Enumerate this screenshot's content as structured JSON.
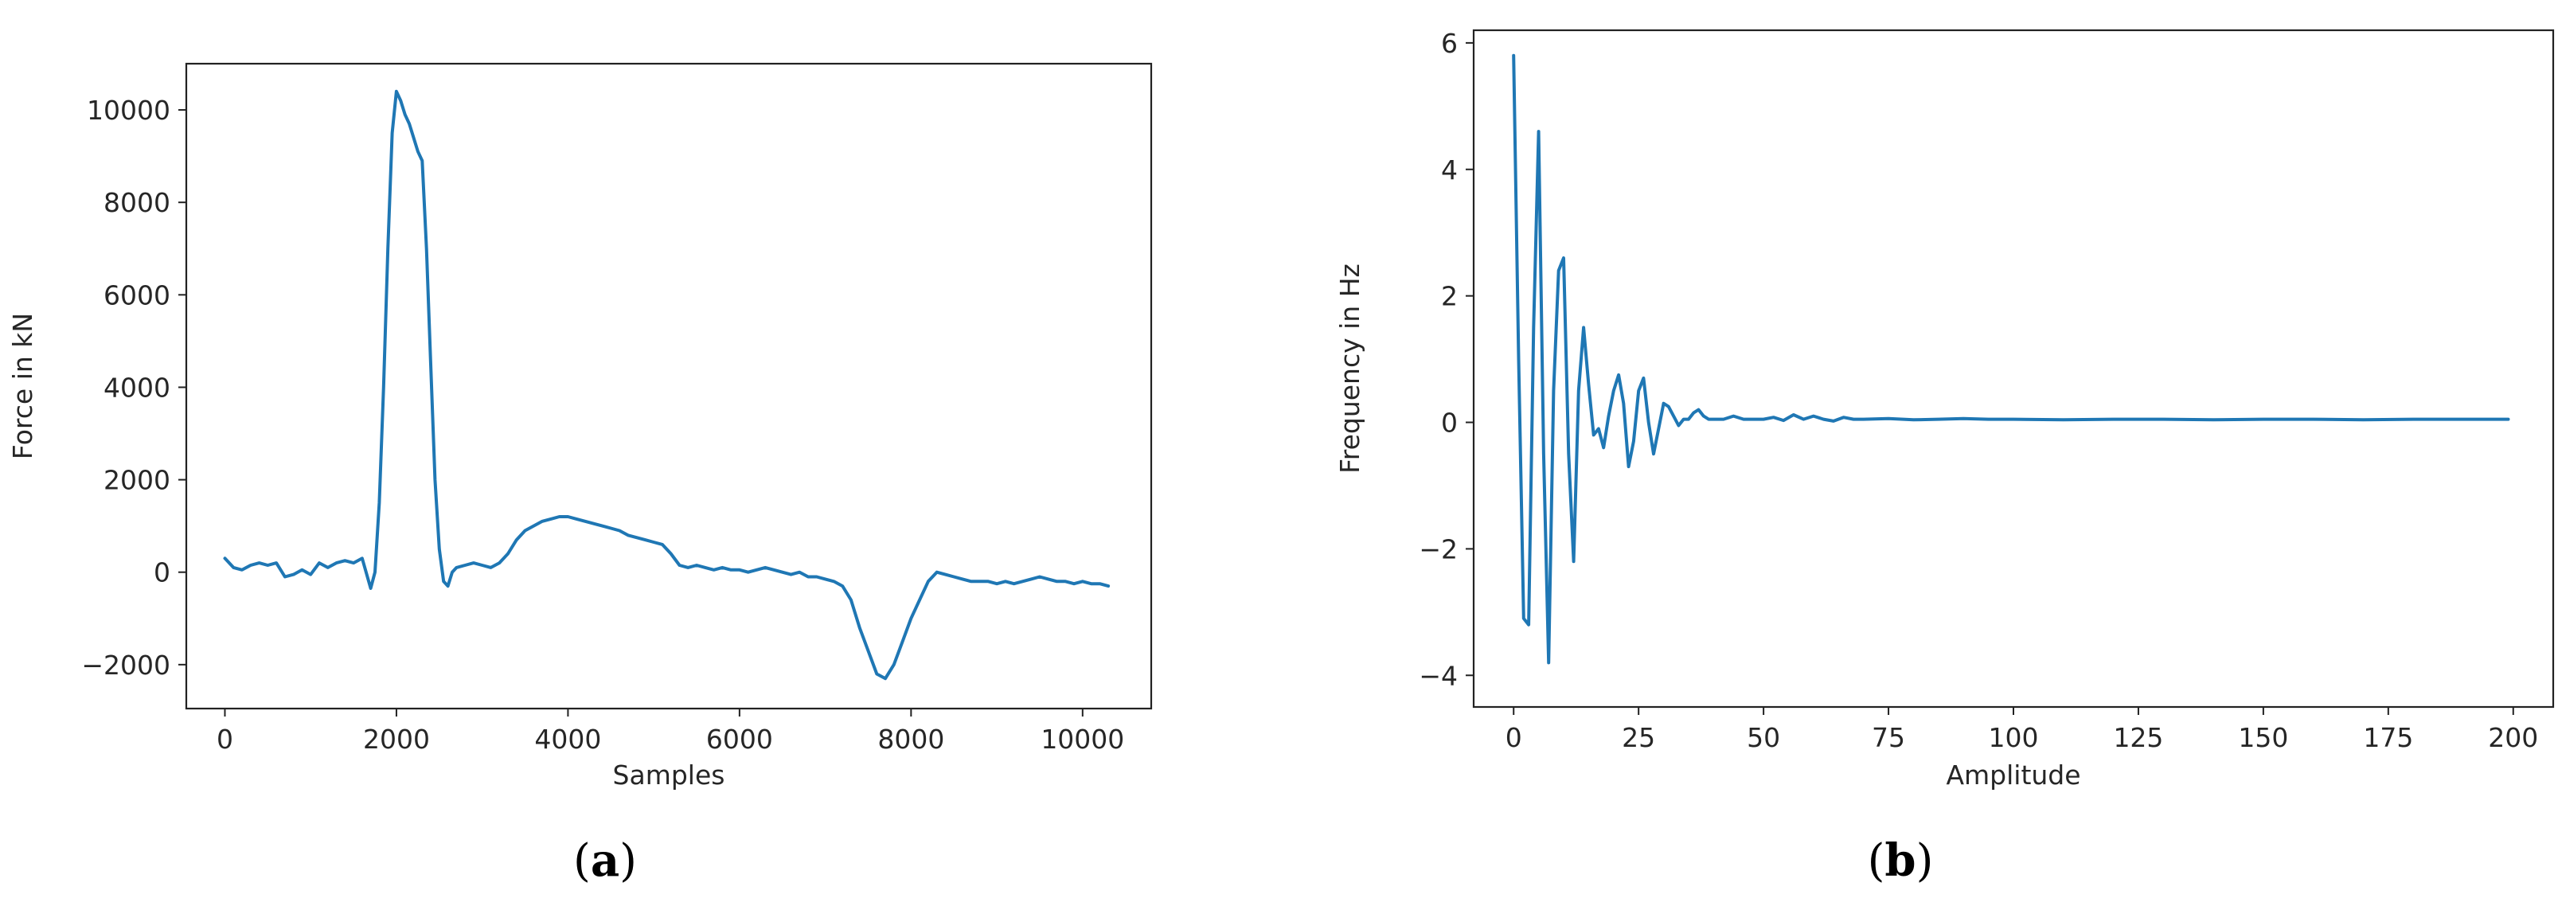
{
  "chart_data": [
    {
      "type": "line",
      "caption_letter": "a",
      "xlabel": "Samples",
      "ylabel": "Force in kN",
      "xlim": [
        -450,
        10800
      ],
      "ylim": [
        -2950,
        11000
      ],
      "xticks": [
        0,
        2000,
        4000,
        6000,
        8000,
        10000
      ],
      "yticks": [
        -2000,
        0,
        2000,
        4000,
        6000,
        8000,
        10000
      ],
      "line_color": "#1f77b4",
      "grid": false,
      "series": [
        {
          "x": [
            0,
            100,
            200,
            300,
            400,
            500,
            600,
            700,
            800,
            900,
            1000,
            1100,
            1200,
            1300,
            1400,
            1500,
            1600,
            1700,
            1750,
            1800,
            1850,
            1900,
            1950,
            2000,
            2050,
            2100,
            2150,
            2200,
            2250,
            2300,
            2350,
            2400,
            2450,
            2500,
            2550,
            2600,
            2650,
            2700,
            2800,
            2900,
            3000,
            3100,
            3200,
            3300,
            3400,
            3500,
            3600,
            3700,
            3800,
            3900,
            4000,
            4100,
            4200,
            4300,
            4400,
            4500,
            4600,
            4700,
            4800,
            4900,
            5000,
            5100,
            5200,
            5300,
            5400,
            5500,
            5600,
            5700,
            5800,
            5900,
            6000,
            6100,
            6200,
            6300,
            6400,
            6500,
            6600,
            6700,
            6800,
            6900,
            7000,
            7100,
            7200,
            7300,
            7400,
            7500,
            7600,
            7700,
            7800,
            7900,
            8000,
            8100,
            8200,
            8300,
            8400,
            8500,
            8600,
            8700,
            8800,
            8900,
            9000,
            9100,
            9200,
            9300,
            9400,
            9500,
            9600,
            9700,
            9800,
            9900,
            10000,
            10100,
            10200,
            10300
          ],
          "y": [
            300,
            100,
            50,
            150,
            200,
            150,
            200,
            -100,
            -50,
            50,
            -50,
            200,
            100,
            200,
            250,
            200,
            300,
            -350,
            0,
            1500,
            4000,
            7000,
            9500,
            10400,
            10200,
            9900,
            9700,
            9400,
            9100,
            8900,
            7000,
            4500,
            2000,
            500,
            -200,
            -300,
            0,
            100,
            150,
            200,
            150,
            100,
            200,
            400,
            700,
            900,
            1000,
            1100,
            1150,
            1200,
            1200,
            1150,
            1100,
            1050,
            1000,
            950,
            900,
            800,
            750,
            700,
            650,
            600,
            400,
            150,
            100,
            150,
            100,
            50,
            100,
            50,
            50,
            0,
            50,
            100,
            50,
            0,
            -50,
            0,
            -100,
            -100,
            -150,
            -200,
            -300,
            -600,
            -1200,
            -1700,
            -2200,
            -2300,
            -2000,
            -1500,
            -1000,
            -600,
            -200,
            0,
            -50,
            -100,
            -150,
            -200,
            -200,
            -200,
            -250,
            -200,
            -250,
            -200,
            -150,
            -100,
            -150,
            -200,
            -200,
            -250,
            -200,
            -250,
            -250,
            -300
          ]
        }
      ]
    },
    {
      "type": "line",
      "caption_letter": "b",
      "xlabel": "Amplitude",
      "ylabel": "Frequency in Hz",
      "xlim": [
        -8,
        208
      ],
      "ylim": [
        -4.5,
        6.2
      ],
      "xticks": [
        0,
        25,
        50,
        75,
        100,
        125,
        150,
        175,
        200
      ],
      "yticks": [
        -4,
        -2,
        0,
        2,
        4,
        6
      ],
      "line_color": "#1f77b4",
      "grid": false,
      "series": [
        {
          "x": [
            0,
            1,
            2,
            3,
            4,
            5,
            6,
            7,
            8,
            9,
            10,
            11,
            12,
            13,
            14,
            15,
            16,
            17,
            18,
            19,
            20,
            21,
            22,
            23,
            24,
            25,
            26,
            27,
            28,
            29,
            30,
            31,
            32,
            33,
            34,
            35,
            36,
            37,
            38,
            39,
            40,
            42,
            44,
            46,
            48,
            50,
            52,
            54,
            56,
            58,
            60,
            62,
            64,
            66,
            68,
            70,
            75,
            80,
            85,
            90,
            95,
            100,
            110,
            120,
            130,
            140,
            150,
            160,
            170,
            180,
            190,
            199
          ],
          "y": [
            5.8,
            1.0,
            -3.1,
            -3.2,
            1.5,
            4.6,
            -0.5,
            -3.8,
            0.5,
            2.4,
            2.6,
            -0.5,
            -2.2,
            0.5,
            1.5,
            0.6,
            -0.2,
            -0.1,
            -0.4,
            0.1,
            0.5,
            0.75,
            0.3,
            -0.7,
            -0.3,
            0.5,
            0.7,
            0.0,
            -0.5,
            -0.1,
            0.3,
            0.25,
            0.1,
            -0.05,
            0.05,
            0.05,
            0.15,
            0.2,
            0.1,
            0.05,
            0.05,
            0.05,
            0.1,
            0.05,
            0.05,
            0.05,
            0.08,
            0.03,
            0.12,
            0.05,
            0.1,
            0.05,
            0.02,
            0.08,
            0.05,
            0.05,
            0.06,
            0.04,
            0.05,
            0.06,
            0.05,
            0.05,
            0.04,
            0.05,
            0.05,
            0.04,
            0.05,
            0.05,
            0.04,
            0.05,
            0.05,
            0.05
          ]
        }
      ]
    }
  ]
}
